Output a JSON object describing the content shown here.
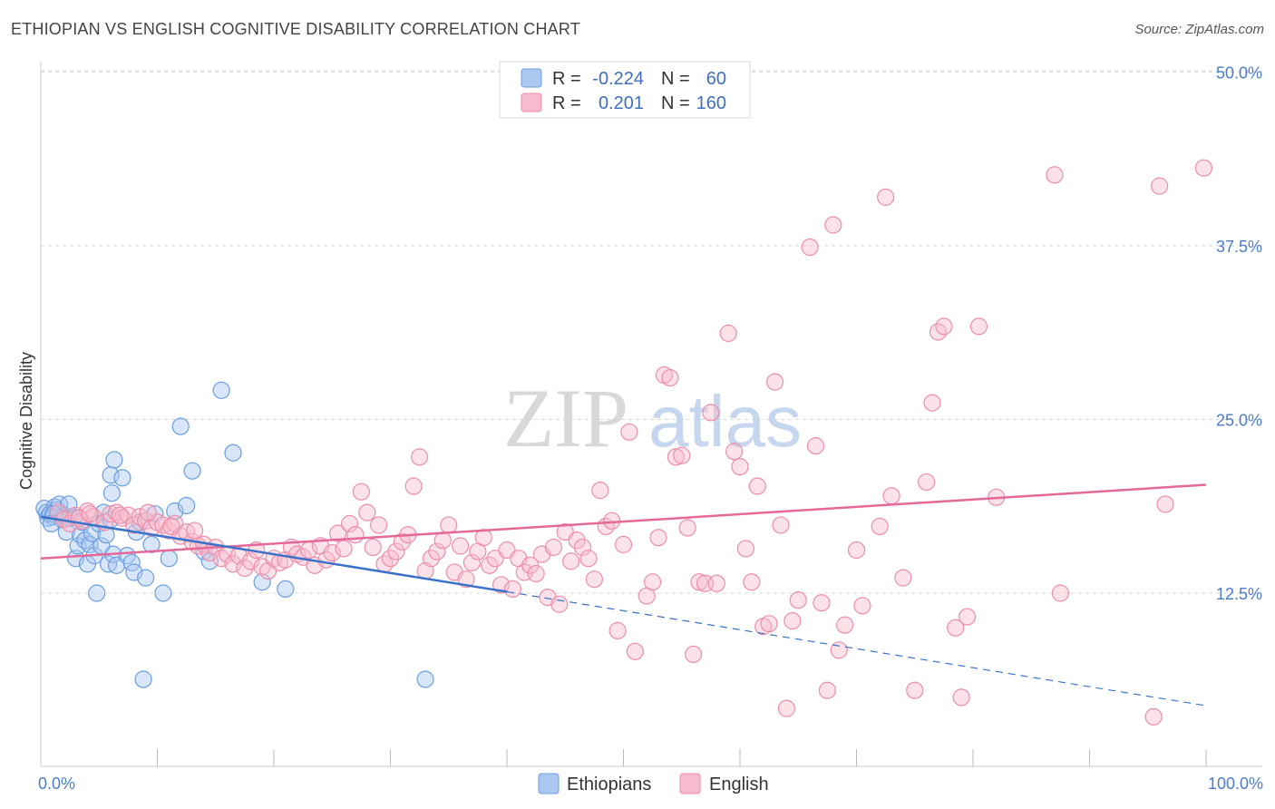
{
  "title": "ETHIOPIAN VS ENGLISH COGNITIVE DISABILITY CORRELATION CHART",
  "source": "Source: ZipAtlas.com",
  "watermark": {
    "zip": "ZIP",
    "atlas": "atlas"
  },
  "colors": {
    "ethiopians_fill": "#aac8f0",
    "ethiopians_stroke": "#6a9ee0",
    "ethiopians_line": "#3a72c8",
    "english_fill": "#f6bccd",
    "english_stroke": "#ec8eab",
    "english_line": "#e4689a",
    "tick_label": "#4a7cc9",
    "grid": "#d8d8d8"
  },
  "legend": {
    "rows": [
      {
        "r_label": "R =",
        "r_value": "-0.224",
        "n_label": "N =",
        "n_value": "60"
      },
      {
        "r_label": "R =",
        "r_value": "0.201",
        "n_label": "N =",
        "n_value": "160"
      }
    ]
  },
  "chart_data": {
    "type": "scatter",
    "title": "ETHIOPIAN VS ENGLISH COGNITIVE DISABILITY CORRELATION CHART",
    "xlabel": "",
    "ylabel": "Cognitive Disability",
    "xlim": [
      0,
      100
    ],
    "ylim": [
      0,
      52
    ],
    "x_tick_labels": [
      "0.0%",
      "100.0%"
    ],
    "y_ticks": [
      12.5,
      25.0,
      37.5,
      50.0
    ],
    "y_tick_labels": [
      "12.5%",
      "25.0%",
      "37.5%",
      "50.0%"
    ],
    "grid": "horizontal dashed",
    "legend_position": "top-center",
    "series": [
      {
        "name": "Ethiopians",
        "trend": {
          "x0": 0,
          "y0": 18.0,
          "x1": 40,
          "y1": 12.6,
          "dashed_to_x": 100,
          "dashed_to_y": 4.4
        },
        "points": [
          [
            0.3,
            18.6
          ],
          [
            0.5,
            18.3
          ],
          [
            0.6,
            17.9
          ],
          [
            0.8,
            18.2
          ],
          [
            1.0,
            18.0
          ],
          [
            1.2,
            18.7
          ],
          [
            1.4,
            18.5
          ],
          [
            1.6,
            18.9
          ],
          [
            1.8,
            17.8
          ],
          [
            2.0,
            18.1
          ],
          [
            2.2,
            16.9
          ],
          [
            2.5,
            17.9
          ],
          [
            2.8,
            18.0
          ],
          [
            3.0,
            15.0
          ],
          [
            3.2,
            15.9
          ],
          [
            3.4,
            16.7
          ],
          [
            3.6,
            17.6
          ],
          [
            3.8,
            16.3
          ],
          [
            4.0,
            14.6
          ],
          [
            4.2,
            16.0
          ],
          [
            4.4,
            16.8
          ],
          [
            4.6,
            15.2
          ],
          [
            5.0,
            17.5
          ],
          [
            5.2,
            15.9
          ],
          [
            5.4,
            18.3
          ],
          [
            5.6,
            16.7
          ],
          [
            5.8,
            14.6
          ],
          [
            6.0,
            17.8
          ],
          [
            6.2,
            15.3
          ],
          [
            6.5,
            14.5
          ],
          [
            6.0,
            21.0
          ],
          [
            6.3,
            22.1
          ],
          [
            6.1,
            19.7
          ],
          [
            7.0,
            20.8
          ],
          [
            7.4,
            15.2
          ],
          [
            7.8,
            14.7
          ],
          [
            8.0,
            14.0
          ],
          [
            8.2,
            16.9
          ],
          [
            8.5,
            17.6
          ],
          [
            9.0,
            13.6
          ],
          [
            9.5,
            16.0
          ],
          [
            9.8,
            18.2
          ],
          [
            10.5,
            12.5
          ],
          [
            11.0,
            15.0
          ],
          [
            11.5,
            18.4
          ],
          [
            12.0,
            24.5
          ],
          [
            12.5,
            18.8
          ],
          [
            13.0,
            21.3
          ],
          [
            14.0,
            15.5
          ],
          [
            14.5,
            14.8
          ],
          [
            15.5,
            27.1
          ],
          [
            16.5,
            22.6
          ],
          [
            19.0,
            13.3
          ],
          [
            21.0,
            12.8
          ],
          [
            4.8,
            12.5
          ],
          [
            8.8,
            6.3
          ],
          [
            33.0,
            6.3
          ],
          [
            2.4,
            18.9
          ],
          [
            1.1,
            18.2
          ],
          [
            0.9,
            17.5
          ]
        ]
      },
      {
        "name": "English",
        "trend": {
          "x0": 0,
          "y0": 15.0,
          "x1": 100,
          "y1": 20.3
        },
        "points": [
          [
            1.5,
            18.3
          ],
          [
            2.0,
            17.8
          ],
          [
            2.5,
            17.5
          ],
          [
            3.0,
            18.1
          ],
          [
            3.5,
            17.7
          ],
          [
            4.0,
            18.4
          ],
          [
            4.5,
            18.0
          ],
          [
            5.5,
            17.6
          ],
          [
            6.0,
            18.2
          ],
          [
            6.5,
            18.3
          ],
          [
            7.0,
            17.9
          ],
          [
            7.5,
            18.1
          ],
          [
            8.0,
            17.4
          ],
          [
            8.5,
            18.0
          ],
          [
            9.0,
            17.7
          ],
          [
            9.5,
            17.2
          ],
          [
            10.0,
            17.6
          ],
          [
            10.5,
            17.4
          ],
          [
            11.0,
            17.0
          ],
          [
            11.5,
            17.5
          ],
          [
            12.0,
            16.6
          ],
          [
            12.5,
            16.9
          ],
          [
            13.0,
            16.2
          ],
          [
            13.5,
            15.9
          ],
          [
            14.0,
            16.0
          ],
          [
            14.5,
            15.4
          ],
          [
            15.0,
            15.8
          ],
          [
            15.5,
            15.0
          ],
          [
            16.0,
            15.3
          ],
          [
            16.5,
            14.6
          ],
          [
            17.0,
            15.2
          ],
          [
            17.5,
            14.3
          ],
          [
            18.0,
            14.8
          ],
          [
            18.5,
            15.6
          ],
          [
            19.0,
            14.4
          ],
          [
            19.5,
            14.1
          ],
          [
            20.0,
            15.0
          ],
          [
            20.5,
            14.7
          ],
          [
            21.0,
            14.9
          ],
          [
            21.5,
            15.8
          ],
          [
            22.0,
            15.3
          ],
          [
            22.5,
            15.1
          ],
          [
            23.0,
            15.6
          ],
          [
            23.5,
            14.5
          ],
          [
            24.0,
            15.9
          ],
          [
            24.5,
            14.9
          ],
          [
            25.0,
            15.4
          ],
          [
            25.5,
            16.8
          ],
          [
            26.0,
            15.7
          ],
          [
            26.5,
            17.5
          ],
          [
            27.0,
            16.7
          ],
          [
            27.5,
            19.8
          ],
          [
            28.0,
            18.3
          ],
          [
            28.5,
            15.8
          ],
          [
            29.0,
            17.4
          ],
          [
            29.5,
            14.6
          ],
          [
            30.0,
            15.0
          ],
          [
            30.5,
            15.5
          ],
          [
            31.0,
            16.2
          ],
          [
            31.5,
            16.7
          ],
          [
            32.0,
            20.2
          ],
          [
            32.5,
            22.3
          ],
          [
            33.0,
            14.1
          ],
          [
            33.5,
            15.0
          ],
          [
            34.0,
            15.5
          ],
          [
            34.5,
            16.3
          ],
          [
            35.0,
            17.4
          ],
          [
            35.5,
            14.0
          ],
          [
            36.0,
            15.9
          ],
          [
            36.5,
            13.5
          ],
          [
            37.0,
            14.7
          ],
          [
            37.5,
            15.5
          ],
          [
            38.0,
            16.5
          ],
          [
            38.5,
            14.5
          ],
          [
            39.0,
            15.0
          ],
          [
            39.5,
            13.1
          ],
          [
            40.0,
            15.6
          ],
          [
            40.5,
            12.8
          ],
          [
            41.0,
            15.0
          ],
          [
            41.5,
            14.0
          ],
          [
            42.0,
            14.5
          ],
          [
            42.5,
            13.9
          ],
          [
            43.0,
            15.3
          ],
          [
            43.5,
            12.2
          ],
          [
            44.0,
            15.8
          ],
          [
            44.5,
            11.7
          ],
          [
            45.0,
            16.9
          ],
          [
            45.5,
            14.8
          ],
          [
            46.0,
            16.3
          ],
          [
            46.5,
            15.8
          ],
          [
            47.0,
            15.0
          ],
          [
            47.5,
            13.5
          ],
          [
            48.0,
            19.9
          ],
          [
            48.5,
            17.3
          ],
          [
            49.0,
            17.7
          ],
          [
            49.5,
            9.8
          ],
          [
            50.0,
            16.0
          ],
          [
            50.5,
            24.1
          ],
          [
            51.0,
            8.3
          ],
          [
            52.0,
            12.3
          ],
          [
            52.5,
            13.3
          ],
          [
            53.0,
            16.5
          ],
          [
            53.5,
            28.2
          ],
          [
            54.0,
            28.0
          ],
          [
            54.5,
            22.3
          ],
          [
            55.0,
            22.4
          ],
          [
            55.5,
            17.2
          ],
          [
            56.0,
            8.1
          ],
          [
            56.5,
            13.3
          ],
          [
            57.0,
            13.2
          ],
          [
            57.5,
            25.5
          ],
          [
            58.0,
            13.2
          ],
          [
            59.0,
            31.2
          ],
          [
            59.5,
            22.7
          ],
          [
            60.0,
            21.6
          ],
          [
            60.5,
            15.7
          ],
          [
            61.0,
            13.3
          ],
          [
            61.5,
            20.2
          ],
          [
            62.0,
            10.1
          ],
          [
            62.5,
            10.3
          ],
          [
            63.0,
            27.7
          ],
          [
            63.5,
            17.4
          ],
          [
            64.0,
            4.2
          ],
          [
            64.5,
            10.5
          ],
          [
            65.0,
            12.0
          ],
          [
            66.0,
            37.4
          ],
          [
            66.5,
            23.1
          ],
          [
            67.0,
            11.8
          ],
          [
            67.5,
            5.5
          ],
          [
            68.0,
            39.0
          ],
          [
            68.5,
            8.4
          ],
          [
            69.0,
            10.2
          ],
          [
            70.0,
            15.6
          ],
          [
            70.5,
            11.6
          ],
          [
            72.0,
            17.3
          ],
          [
            72.5,
            41.0
          ],
          [
            73.0,
            19.5
          ],
          [
            74.0,
            13.6
          ],
          [
            75.0,
            5.5
          ],
          [
            76.0,
            20.5
          ],
          [
            76.5,
            26.2
          ],
          [
            77.0,
            31.3
          ],
          [
            77.5,
            31.7
          ],
          [
            78.5,
            10.0
          ],
          [
            79.0,
            5.0
          ],
          [
            79.5,
            10.8
          ],
          [
            80.5,
            31.7
          ],
          [
            82.0,
            19.4
          ],
          [
            87.0,
            42.6
          ],
          [
            87.5,
            12.5
          ],
          [
            95.5,
            3.6
          ],
          [
            96.0,
            41.8
          ],
          [
            96.5,
            18.9
          ],
          [
            99.8,
            43.1
          ],
          [
            3.3,
            17.9
          ],
          [
            4.2,
            18.2
          ],
          [
            6.8,
            18.1
          ],
          [
            9.2,
            18.3
          ],
          [
            11.2,
            17.3
          ],
          [
            13.2,
            17.0
          ]
        ]
      }
    ]
  },
  "bottom_legend": {
    "items": [
      "Ethiopians",
      "English"
    ]
  }
}
